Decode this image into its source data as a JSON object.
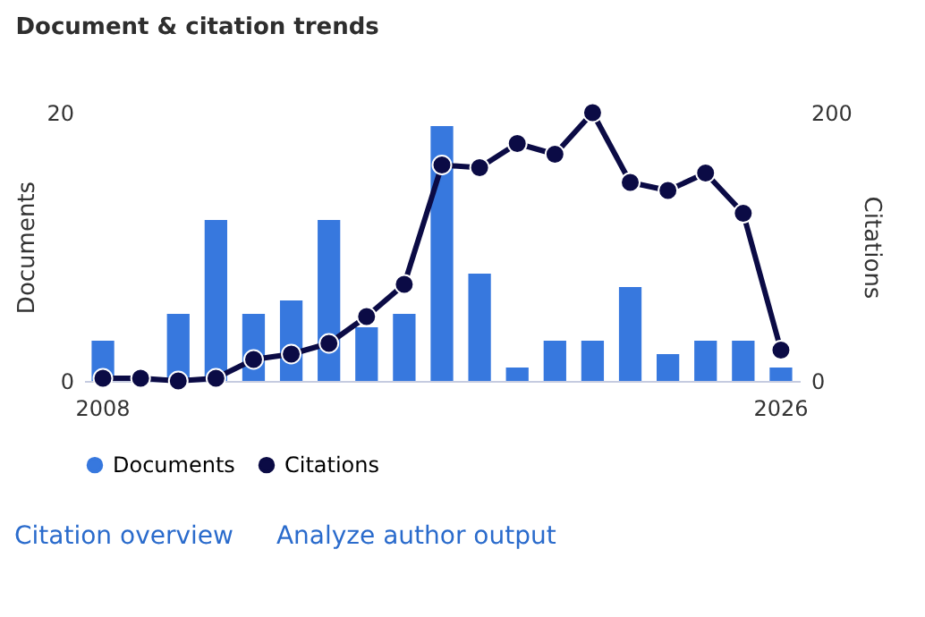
{
  "chart_data": {
    "type": "bar",
    "title": "Document & citation trends",
    "categories": [
      "2008",
      null,
      null,
      null,
      null,
      null,
      null,
      null,
      null,
      null,
      null,
      null,
      null,
      null,
      null,
      null,
      null,
      null,
      "2026"
    ],
    "series": [
      {
        "name": "Documents",
        "color": "#3778de",
        "values": [
          3,
          0,
          5,
          12,
          5,
          6,
          12,
          4,
          5,
          19,
          8,
          1,
          3,
          3,
          7,
          2,
          3,
          3,
          1
        ]
      },
      {
        "name": "Citations",
        "type": "line",
        "axis": "y2",
        "color": "#0b0b45",
        "marker": "circle",
        "line_style": "solid",
        "values": [
          2,
          2,
          0,
          2,
          16,
          20,
          28,
          48,
          72,
          161,
          159,
          177,
          169,
          200,
          148,
          142,
          155,
          125,
          23
        ]
      }
    ],
    "ylabel": "Documents",
    "y2label": "Citations",
    "ylim": [
      0,
      20
    ],
    "yticks": [
      0,
      20
    ],
    "y2lim": [
      0,
      200
    ],
    "y2ticks": [
      0,
      200
    ],
    "grid": false,
    "legend": "bottom",
    "annotations": [
      "Citation overview",
      "Analyze author output"
    ]
  }
}
